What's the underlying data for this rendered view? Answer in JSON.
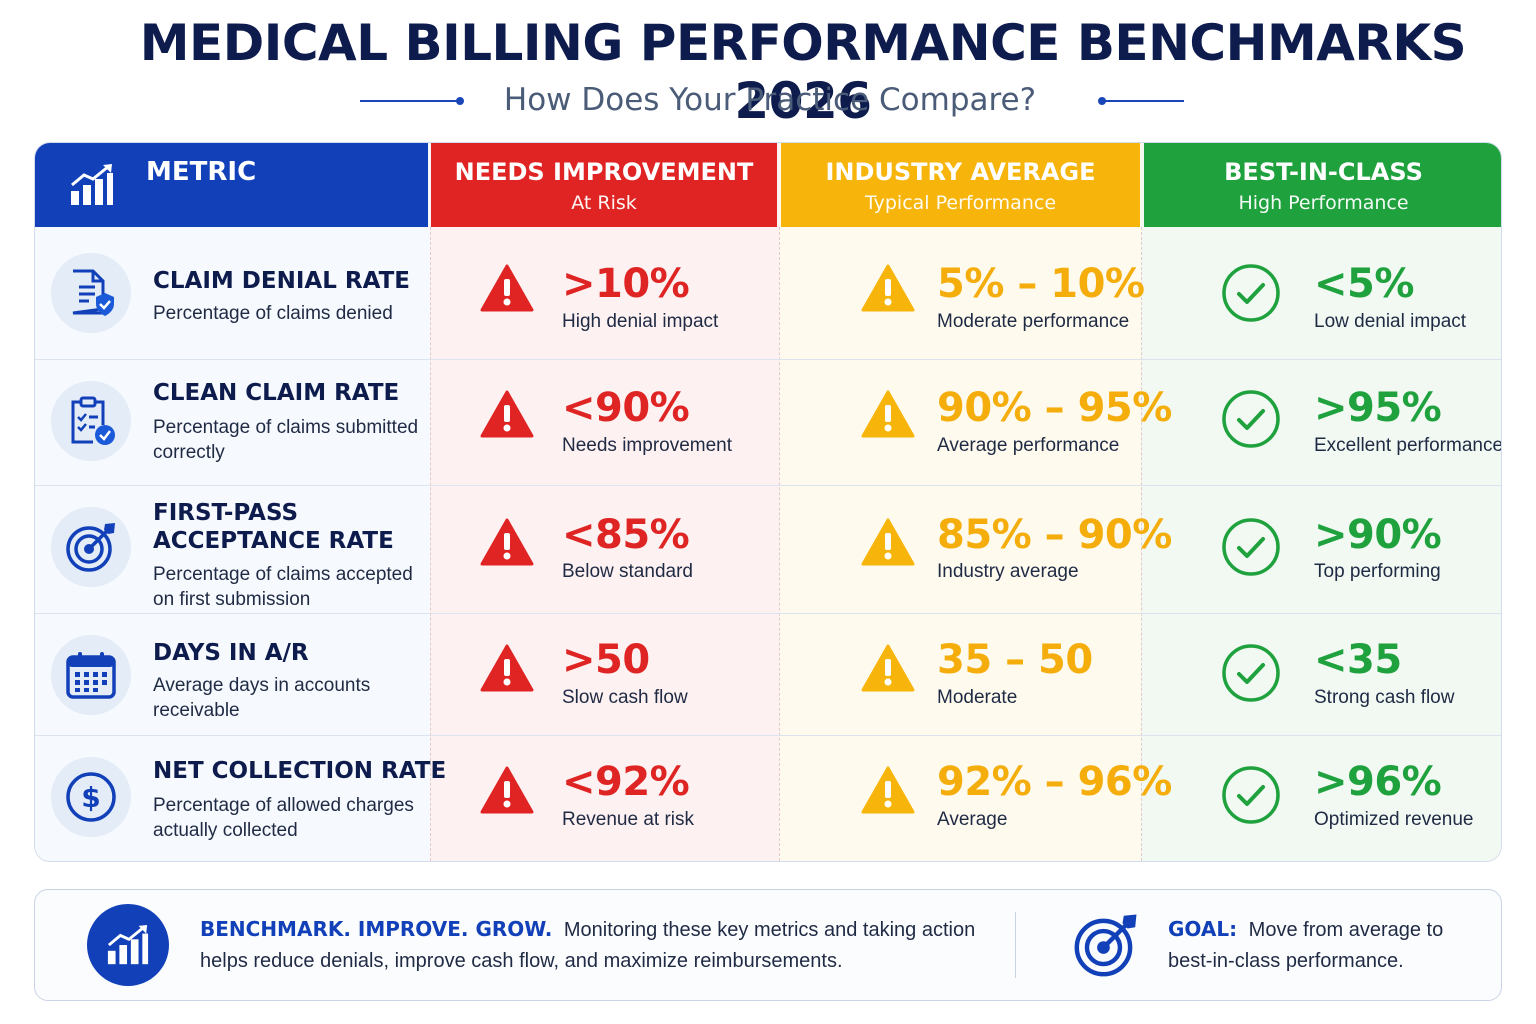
{
  "header": {
    "title": "MEDICAL BILLING PERFORMANCE BENCHMARKS 2026",
    "subtitle": "How Does Your Practice Compare?"
  },
  "columns": {
    "metric": {
      "title": "METRIC",
      "icon": "bar-chart-growth-icon"
    },
    "needs_improvement": {
      "title": "NEEDS IMPROVEMENT",
      "subtitle": "At Risk",
      "color": "#e02424"
    },
    "industry_average": {
      "title": "INDUSTRY AVERAGE",
      "subtitle": "Typical Performance",
      "color": "#f7b40a"
    },
    "best_in_class": {
      "title": "BEST-IN-CLASS",
      "subtitle": "High Performance",
      "color": "#1fa13d"
    }
  },
  "rows": [
    {
      "icon": "document-shield-icon",
      "title": "CLAIM DENIAL RATE",
      "description": "Percentage of claims denied",
      "needs_improvement": {
        "value": ">10%",
        "label": "High denial impact"
      },
      "industry_average": {
        "value": "5% – 10%",
        "label": "Moderate performance"
      },
      "best_in_class": {
        "value": "<5%",
        "label": "Low denial impact"
      }
    },
    {
      "icon": "clipboard-check-icon",
      "title": "CLEAN CLAIM RATE",
      "description": "Percentage of claims submitted correctly",
      "needs_improvement": {
        "value": "<90%",
        "label": "Needs improvement"
      },
      "industry_average": {
        "value": "90% – 95%",
        "label": "Average performance"
      },
      "best_in_class": {
        "value": ">95%",
        "label": "Excellent performance"
      }
    },
    {
      "icon": "target-arrow-icon",
      "title_line1": "FIRST-PASS",
      "title_line2": "ACCEPTANCE RATE",
      "description": "Percentage of claims accepted on first submission",
      "needs_improvement": {
        "value": "<85%",
        "label": "Below standard"
      },
      "industry_average": {
        "value": "85% – 90%",
        "label": "Industry average"
      },
      "best_in_class": {
        "value": ">90%",
        "label": "Top performing"
      }
    },
    {
      "icon": "calendar-icon",
      "title": "DAYS IN A/R",
      "description": "Average days in accounts receivable",
      "needs_improvement": {
        "value": ">50",
        "label": "Slow cash flow"
      },
      "industry_average": {
        "value": "35 – 50",
        "label": "Moderate"
      },
      "best_in_class": {
        "value": "<35",
        "label": "Strong cash flow"
      }
    },
    {
      "icon": "dollar-circle-icon",
      "title": "NET COLLECTION RATE",
      "description": "Percentage of allowed charges actually collected",
      "needs_improvement": {
        "value": "<92%",
        "label": "Revenue at risk"
      },
      "industry_average": {
        "value": "92% – 96%",
        "label": "Average"
      },
      "best_in_class": {
        "value": ">96%",
        "label": "Optimized revenue"
      }
    }
  ],
  "footer": {
    "tagline": "BENCHMARK. IMPROVE. GROW.",
    "message": "Monitoring these key metrics and taking action helps reduce denials, improve cash flow, and maximize reimbursements.",
    "goal_label": "GOAL:",
    "goal_text": "Move from average to best-in-class performance."
  },
  "status_icons": {
    "needs_improvement": "warning-triangle-icon",
    "industry_average": "warning-triangle-icon",
    "best_in_class": "check-circle-icon"
  }
}
